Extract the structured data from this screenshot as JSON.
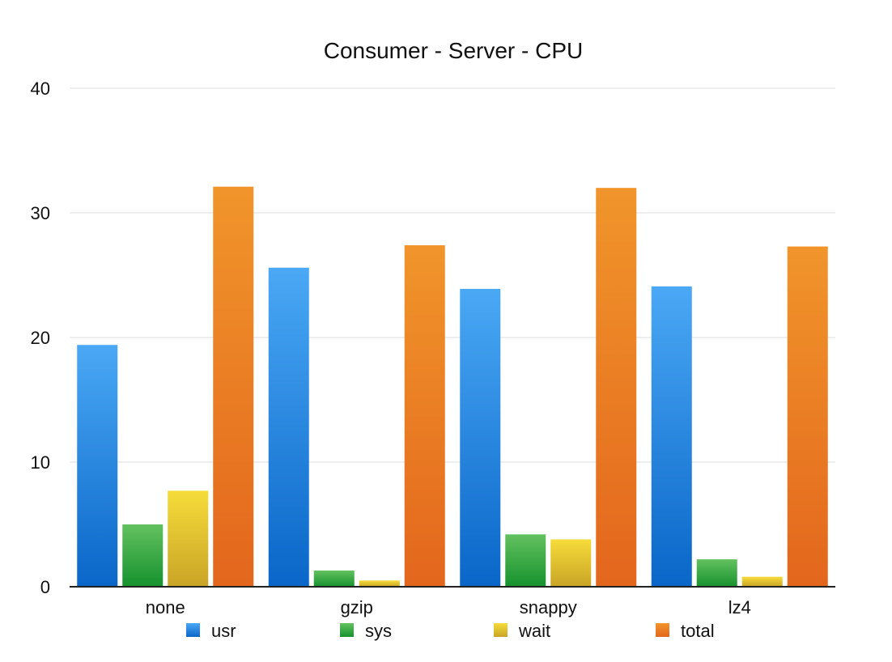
{
  "chart_data": {
    "type": "bar",
    "title": "Consumer - Server - CPU",
    "xlabel": "",
    "ylabel": "",
    "categories": [
      "none",
      "gzip",
      "snappy",
      "lz4"
    ],
    "series": [
      {
        "name": "usr",
        "values": [
          19.4,
          25.6,
          23.9,
          24.1
        ],
        "color_top": "#4aa8f5",
        "color_bottom": "#0a66c8"
      },
      {
        "name": "sys",
        "values": [
          5.0,
          1.3,
          4.2,
          2.2
        ],
        "color_top": "#63c15f",
        "color_bottom": "#16922e"
      },
      {
        "name": "wait",
        "values": [
          7.7,
          0.5,
          3.8,
          0.8
        ],
        "color_top": "#f6dc3a",
        "color_bottom": "#c9a426"
      },
      {
        "name": "total",
        "values": [
          32.1,
          27.4,
          32.0,
          27.3
        ],
        "color_top": "#f1952b",
        "color_bottom": "#e3661d"
      }
    ],
    "ylim": [
      0,
      40
    ],
    "yticks": [
      0,
      10,
      20,
      30,
      40
    ],
    "grid": true,
    "legend": "bottom"
  }
}
